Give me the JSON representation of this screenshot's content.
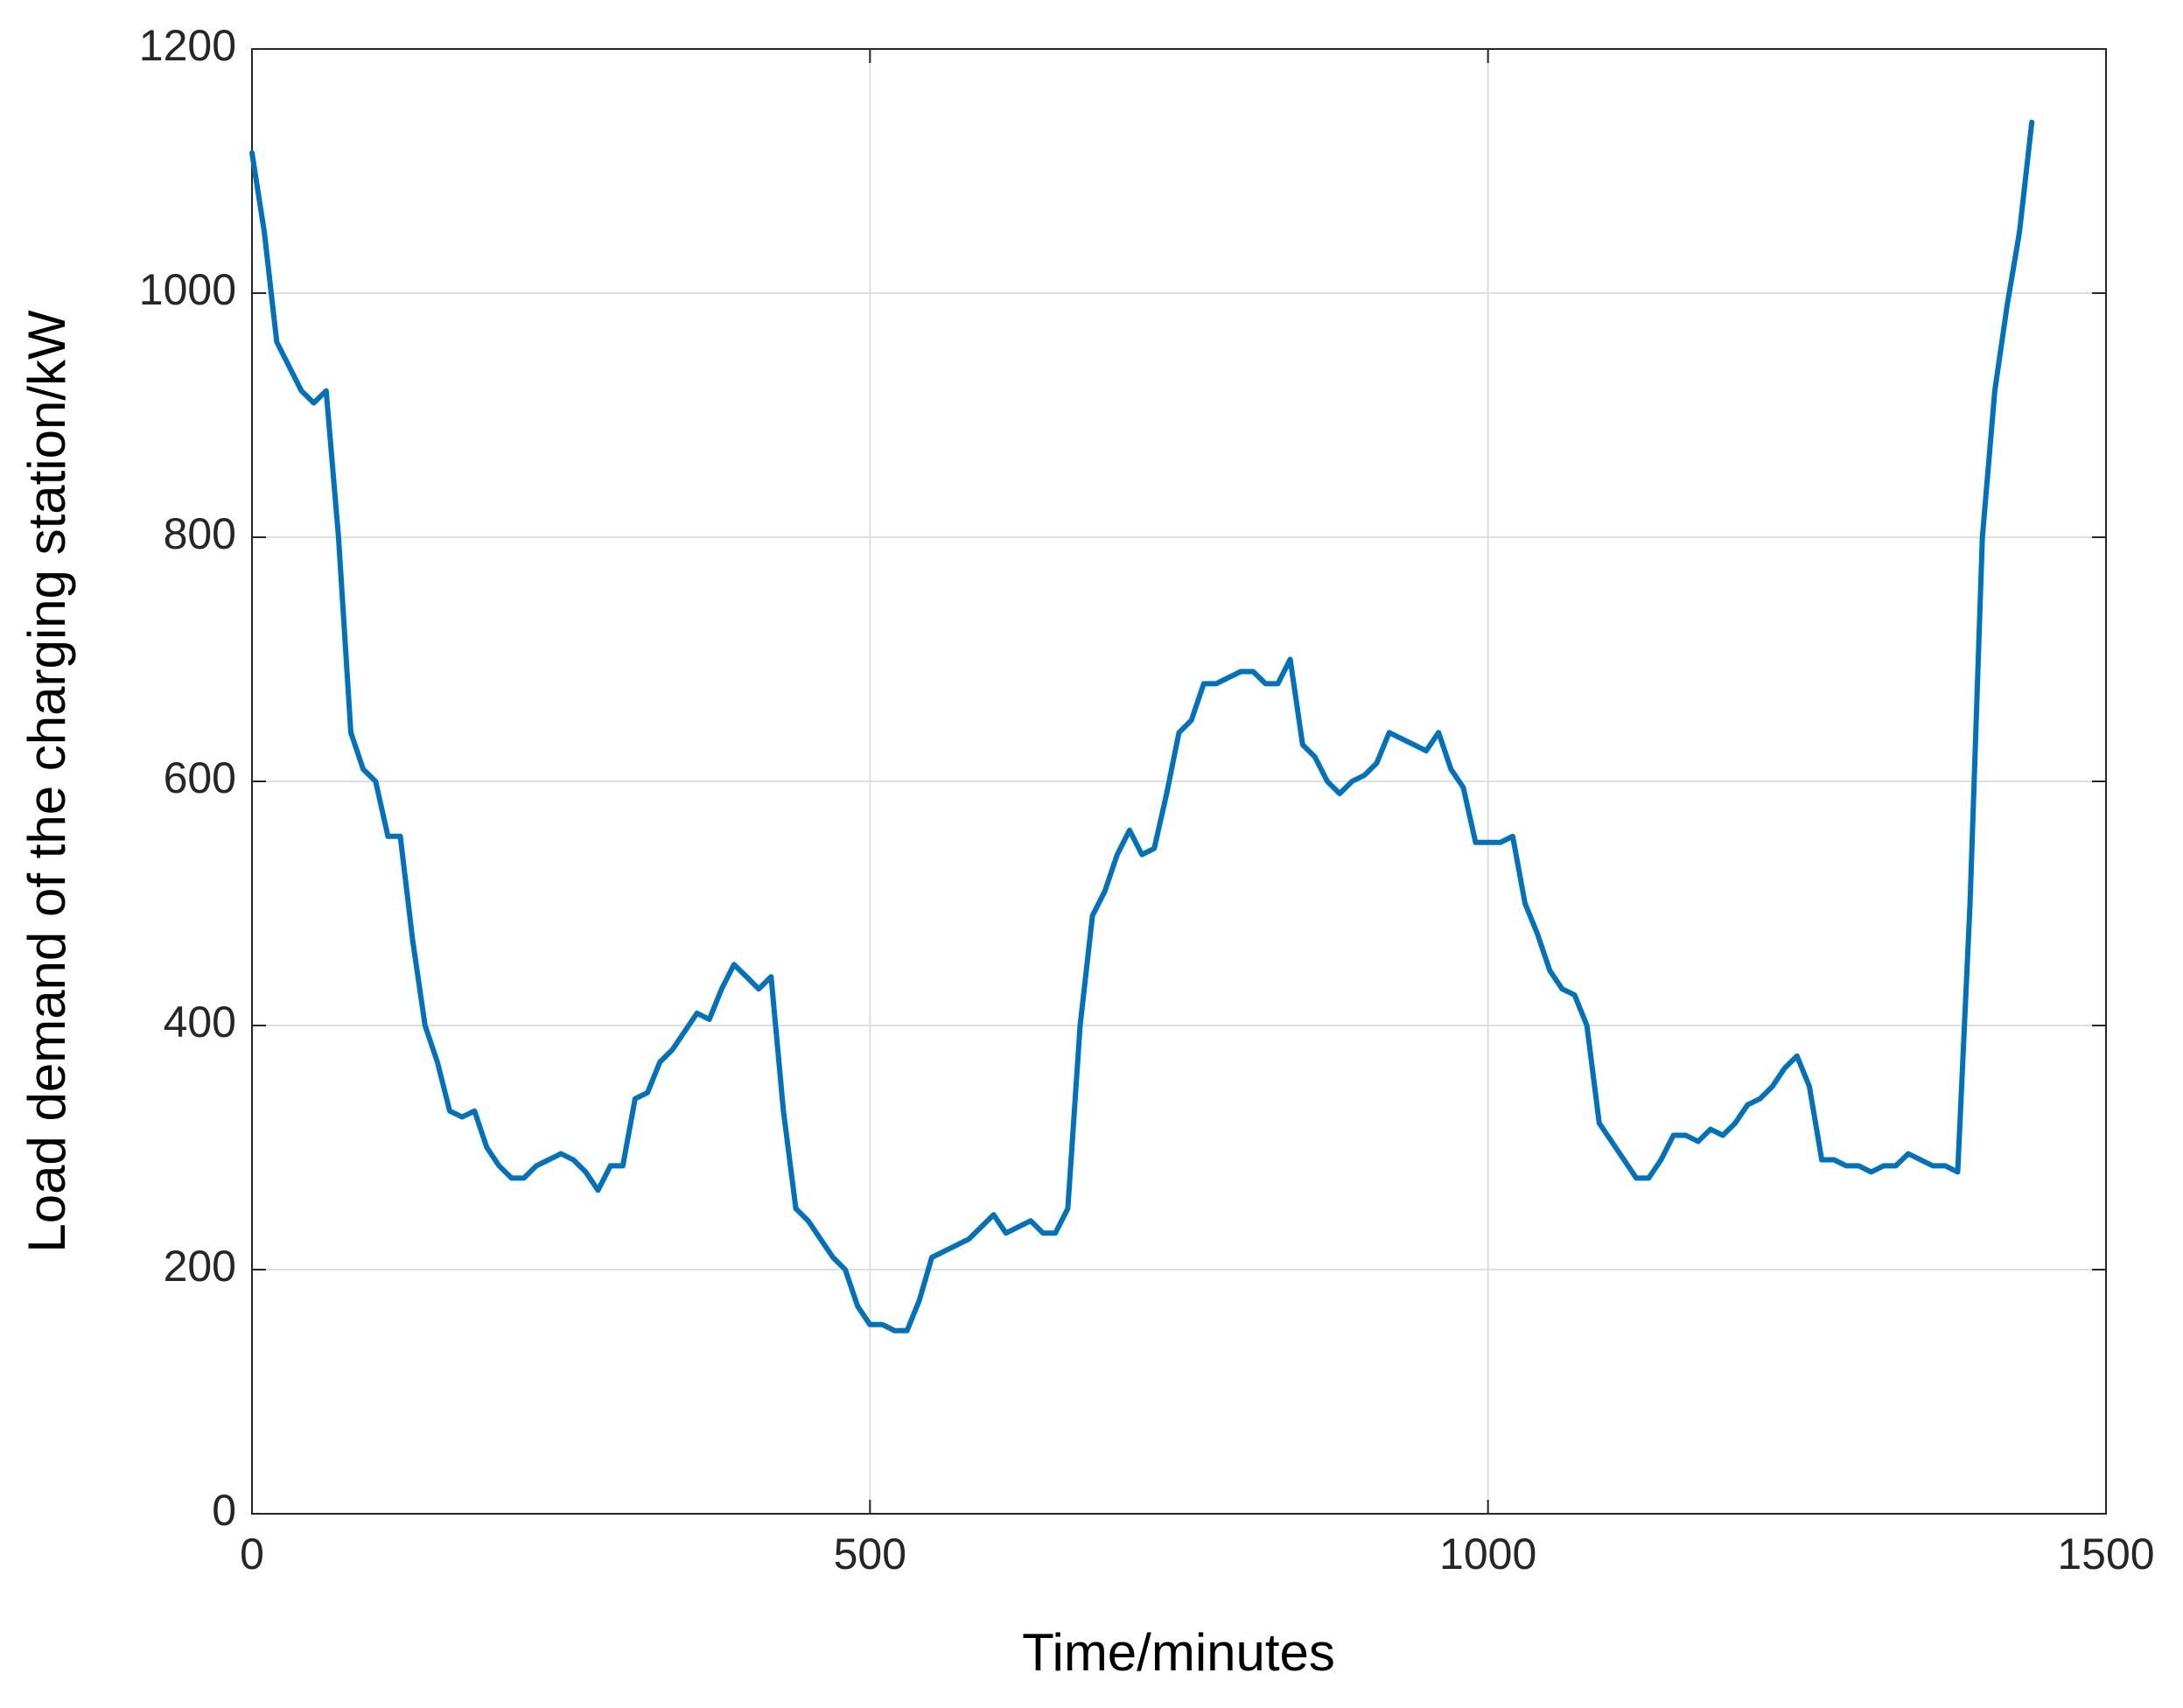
{
  "chart_data": {
    "type": "line",
    "x_label": "Time/minutes",
    "y_label": "Load demand of the charging station/kW",
    "x": [
      0,
      10,
      20,
      30,
      40,
      50,
      60,
      70,
      80,
      90,
      100,
      110,
      120,
      130,
      140,
      150,
      160,
      170,
      180,
      190,
      200,
      210,
      220,
      230,
      240,
      250,
      260,
      270,
      280,
      290,
      300,
      310,
      320,
      330,
      340,
      350,
      360,
      370,
      380,
      390,
      400,
      410,
      420,
      430,
      440,
      450,
      460,
      470,
      480,
      490,
      500,
      510,
      520,
      530,
      540,
      550,
      560,
      570,
      580,
      590,
      600,
      610,
      620,
      630,
      640,
      650,
      660,
      670,
      680,
      690,
      700,
      710,
      720,
      730,
      740,
      750,
      760,
      770,
      780,
      790,
      800,
      810,
      820,
      830,
      840,
      850,
      860,
      870,
      880,
      890,
      900,
      910,
      920,
      930,
      940,
      950,
      960,
      970,
      980,
      990,
      1000,
      1010,
      1020,
      1030,
      1040,
      1050,
      1060,
      1070,
      1080,
      1090,
      1100,
      1110,
      1120,
      1130,
      1140,
      1150,
      1160,
      1170,
      1180,
      1190,
      1200,
      1210,
      1220,
      1230,
      1240,
      1250,
      1260,
      1270,
      1280,
      1290,
      1300,
      1310,
      1320,
      1330,
      1340,
      1350,
      1360,
      1370,
      1380,
      1390,
      1400,
      1410,
      1420,
      1430,
      1440
    ],
    "values": [
      1115,
      1050,
      960,
      940,
      920,
      910,
      920,
      800,
      640,
      610,
      600,
      555,
      555,
      470,
      400,
      370,
      330,
      325,
      330,
      300,
      285,
      275,
      275,
      285,
      290,
      295,
      290,
      280,
      265,
      285,
      285,
      340,
      345,
      370,
      380,
      395,
      410,
      405,
      430,
      450,
      440,
      430,
      440,
      330,
      250,
      240,
      225,
      210,
      200,
      170,
      155,
      155,
      150,
      150,
      175,
      210,
      215,
      220,
      225,
      235,
      245,
      230,
      235,
      240,
      230,
      230,
      250,
      400,
      490,
      510,
      540,
      560,
      540,
      545,
      590,
      640,
      650,
      680,
      680,
      685,
      690,
      690,
      680,
      680,
      700,
      630,
      620,
      600,
      590,
      600,
      605,
      615,
      640,
      635,
      630,
      625,
      640,
      610,
      595,
      550,
      550,
      550,
      555,
      500,
      475,
      445,
      430,
      425,
      400,
      320,
      305,
      290,
      275,
      275,
      290,
      310,
      310,
      305,
      315,
      310,
      320,
      335,
      340,
      350,
      365,
      375,
      350,
      290,
      290,
      285,
      285,
      280,
      285,
      285,
      295,
      290,
      285,
      285,
      280,
      500,
      800,
      920,
      990,
      1050,
      1140
    ],
    "color": "#0072bd",
    "xlim": [
      0,
      1500
    ],
    "xticks": [
      0,
      500,
      1000,
      1500
    ],
    "ylim": [
      0,
      1200
    ],
    "yticks": [
      0,
      200,
      400,
      600,
      800,
      1000,
      1200
    ],
    "grid": true
  }
}
